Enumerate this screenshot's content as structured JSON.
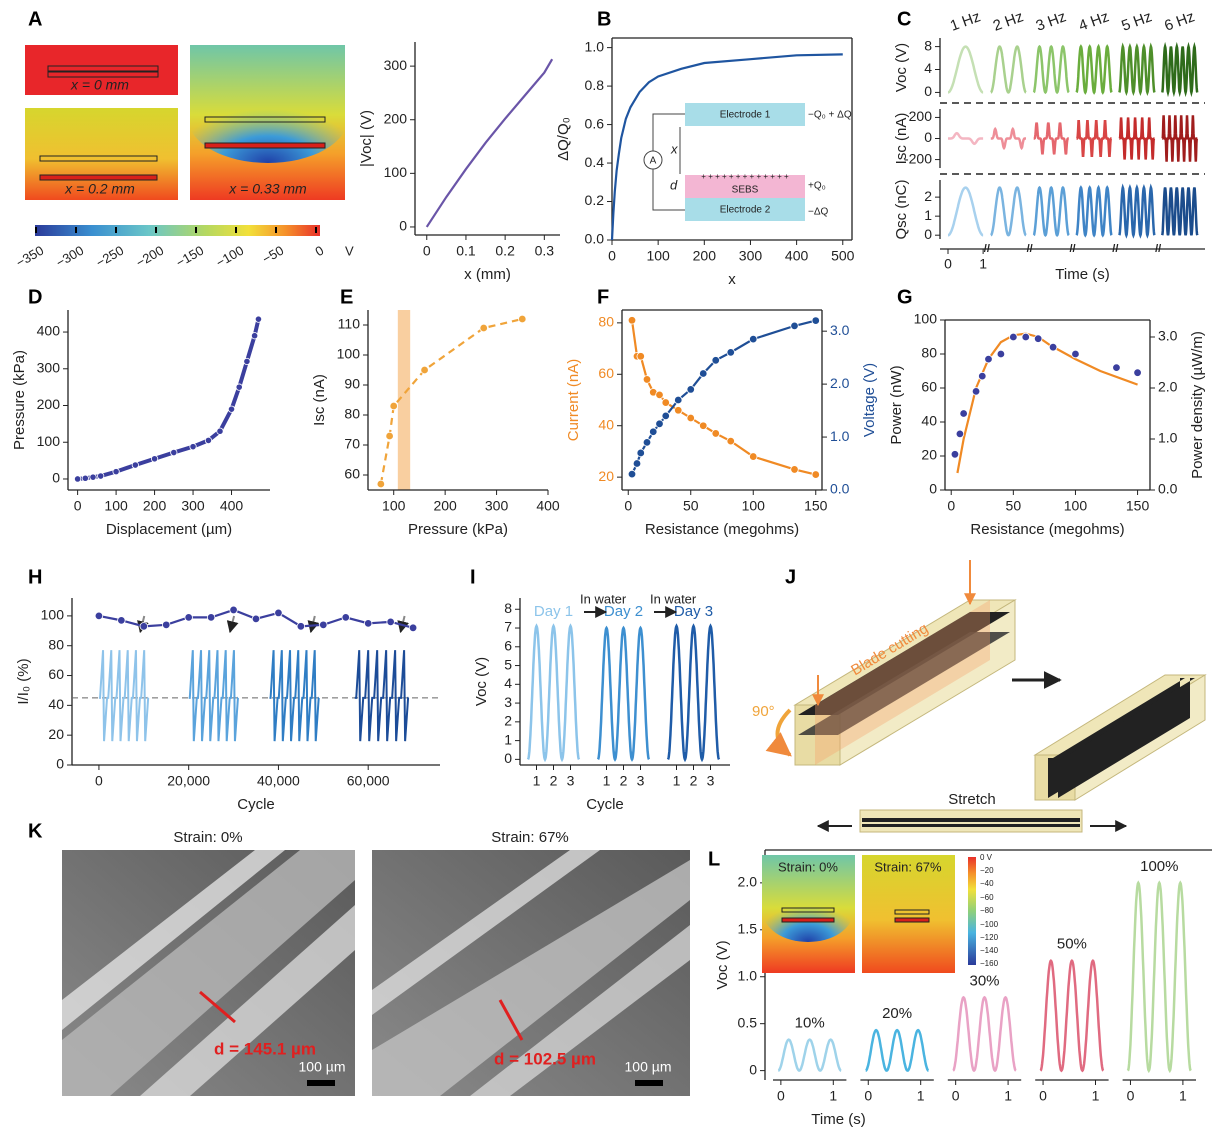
{
  "panel_letters": [
    "A",
    "B",
    "C",
    "D",
    "E",
    "F",
    "G",
    "H",
    "I",
    "J",
    "K",
    "L"
  ],
  "panel_a": {
    "labels": [
      "x = 0 mm",
      "x = 0.2 mm",
      "x = 0.33 mm"
    ],
    "colorbar": [
      "−350",
      "−300",
      "−250",
      "−200",
      "−150",
      "−100",
      "−50",
      "0"
    ],
    "unit": "V"
  },
  "panel_j": {
    "blade": "Blade cutting",
    "angle": "90°",
    "stretch": "Stretch"
  },
  "panel_k": {
    "images": [
      {
        "title": "Strain: 0%",
        "d": "d = 145.1 µm",
        "scale": "100 µm"
      },
      {
        "title": "Strain: 67%",
        "d": "d = 102.5 µm",
        "scale": "100 µm"
      }
    ]
  },
  "panel_l_inset": {
    "titles": [
      "Strain: 0%",
      "Strain: 67%"
    ],
    "colorbar": [
      "0 V",
      "−20",
      "−40",
      "−60",
      "−80",
      "−100",
      "−120",
      "−140",
      "−160"
    ]
  },
  "chart_data": [
    {
      "type": "line",
      "xlabel": "x (mm)",
      "ylabel": "|Voc| (V)",
      "xlim": [
        -0.03,
        0.34
      ],
      "ylim": [
        -15,
        345
      ],
      "xticks": [
        0,
        0.1,
        0.2,
        0.3
      ],
      "yticks": [
        0,
        100,
        200,
        300
      ],
      "series": [
        {
          "color": "#6a55a8",
          "style": "line",
          "x": [
            0,
            0.05,
            0.1,
            0.15,
            0.2,
            0.25,
            0.3,
            0.32
          ],
          "values": [
            0,
            56,
            108,
            157,
            202,
            245,
            288,
            313
          ]
        }
      ]
    },
    {
      "type": "line",
      "frame": true,
      "xlabel": "x",
      "ylabel": "ΔQ/Q₀",
      "xlim": [
        0,
        520
      ],
      "ylim": [
        0,
        1.05
      ],
      "xticks": [
        0,
        100,
        200,
        300,
        400,
        500
      ],
      "yticks": [
        {
          "value": 0,
          "label": "0.0"
        },
        0.2,
        0.4,
        0.6,
        0.8,
        {
          "value": 1,
          "label": "1.0"
        }
      ],
      "series": [
        {
          "color": "#1f55a0",
          "style": "line",
          "x": [
            0,
            3,
            6,
            10,
            15,
            20,
            30,
            40,
            60,
            80,
            100,
            150,
            200,
            300,
            400,
            500
          ],
          "values": [
            0,
            0.14,
            0.25,
            0.36,
            0.45,
            0.53,
            0.63,
            0.69,
            0.77,
            0.82,
            0.85,
            0.89,
            0.92,
            0.94,
            0.96,
            0.965
          ]
        }
      ],
      "inset": {
        "electrode1": "Electrode 1",
        "charge1": "−Q₀ + ΔQ",
        "gap": "x",
        "thickness": "d",
        "layer": "SEBS",
        "charge_layer": "+Q₀",
        "electrode2": "Electrode 2",
        "charge2": "−ΔQ",
        "meter": "A",
        "plus": "+ + + + + + + + + + + + +"
      }
    },
    {
      "type": "frequency_signals",
      "categories": [
        "1 Hz",
        "2 Hz",
        "3 Hz",
        "4 Hz",
        "5 Hz",
        "6 Hz"
      ],
      "xlabel": "Time (s)",
      "xticks": [
        0,
        1
      ],
      "rows": [
        {
          "name": "Voc (V)",
          "shape": "bump",
          "ylim": [
            -0.8,
            9.5
          ],
          "yticks": [
            0,
            4,
            8
          ],
          "peaks": [
            8,
            8,
            8,
            8,
            8,
            8
          ],
          "colors": [
            "#c5e0b4",
            "#a9d18e",
            "#8cc56a",
            "#6aad3d",
            "#4e8f2a",
            "#2e6b1a"
          ]
        },
        {
          "name": "Isc (nA)",
          "shape": "bipolar",
          "ylim": [
            -280,
            280
          ],
          "yticks": [
            -200,
            0,
            200
          ],
          "peaks": [
            50,
            90,
            150,
            170,
            200,
            220
          ],
          "colors": [
            "#f4b6c2",
            "#ee8e98",
            "#e5676e",
            "#d84545",
            "#c42c2c",
            "#a01d1d"
          ]
        },
        {
          "name": "Qsc (nC)",
          "shape": "bump",
          "ylim": [
            -0.2,
            2.9
          ],
          "yticks": [
            0,
            1,
            2
          ],
          "peaks": [
            2.5,
            2.5,
            2.5,
            2.5,
            2.5,
            2.5
          ],
          "colors": [
            "#a8d1ee",
            "#7ab4e0",
            "#5b9fd6",
            "#3f84c6",
            "#2a67ac",
            "#1b4c8c"
          ]
        }
      ]
    },
    {
      "type": "line",
      "xlabel": "Displacement (µm)",
      "ylabel": "Pressure (kPa)",
      "xlim": [
        -25,
        500
      ],
      "ylim": [
        -30,
        460
      ],
      "xticks": [
        0,
        100,
        200,
        300,
        400
      ],
      "yticks": [
        0,
        100,
        200,
        300,
        400
      ],
      "series": [
        {
          "color": "#3b3f9e",
          "style": "line-markers",
          "x": [
            0,
            20,
            40,
            60,
            100,
            150,
            200,
            250,
            300,
            340,
            370,
            400,
            420,
            440,
            460,
            470
          ],
          "values": [
            0,
            2,
            5,
            8,
            20,
            38,
            55,
            72,
            88,
            105,
            130,
            190,
            250,
            320,
            390,
            435
          ]
        }
      ]
    },
    {
      "type": "line",
      "xlabel": "Pressure (kPa)",
      "ylabel": "Isc (nA)",
      "xlim": [
        50,
        400
      ],
      "ylim": [
        55,
        115
      ],
      "xticks": [
        100,
        200,
        300,
        400
      ],
      "yticks": [
        60,
        70,
        80,
        90,
        100,
        110
      ],
      "highlight": [
        108,
        132
      ],
      "highlight_color": "#f9cfa0",
      "series": [
        {
          "color": "#f0a43a",
          "style": "dashed-markers",
          "x": [
            75,
            92,
            100,
            160,
            275,
            350
          ],
          "values": [
            57,
            73,
            83,
            95,
            109,
            112
          ]
        }
      ]
    },
    {
      "type": "line",
      "frame": true,
      "color_axes": true,
      "xlabel": "Resistance (megohms)",
      "ylabel": "Current (nA)",
      "y2label": "Voltage (V)",
      "xlim": [
        -5,
        155
      ],
      "ylim": [
        15,
        85
      ],
      "y2lim": [
        0,
        3.4
      ],
      "xticks": [
        0,
        50,
        100,
        150
      ],
      "yticks": [
        20,
        40,
        60,
        80
      ],
      "y2ticks": [
        {
          "value": 0,
          "label": "0.0"
        },
        {
          "value": 1,
          "label": "1.0"
        },
        {
          "value": 2,
          "label": "2.0"
        },
        {
          "value": 3,
          "label": "3.0"
        }
      ],
      "series": [
        {
          "color": "#f08a24",
          "style": "line-markers",
          "x": [
            3,
            7,
            10,
            15,
            20,
            25,
            30,
            40,
            50,
            60,
            70,
            82,
            100,
            133,
            150
          ],
          "values": [
            81,
            67,
            67,
            58,
            53,
            52,
            49,
            46,
            43,
            40,
            37,
            34,
            28,
            23,
            21
          ]
        },
        {
          "color": "#1f4e96",
          "style": "line-markers",
          "axis": "y2",
          "x": [
            3,
            7,
            10,
            15,
            20,
            25,
            30,
            40,
            50,
            60,
            70,
            82,
            100,
            133,
            150
          ],
          "values": [
            0.3,
            0.5,
            0.7,
            0.9,
            1.1,
            1.25,
            1.4,
            1.7,
            1.9,
            2.2,
            2.45,
            2.6,
            2.85,
            3.1,
            3.2
          ]
        }
      ]
    },
    {
      "type": "line",
      "frame": true,
      "xlabel": "Resistance (megohms)",
      "ylabel": "Power (nW)",
      "y2label": "Power density (µW/m)",
      "xlim": [
        -5,
        160
      ],
      "ylim": [
        0,
        100
      ],
      "y2lim": [
        0,
        3.333
      ],
      "xticks": [
        0,
        50,
        100,
        150
      ],
      "yticks": [
        0,
        20,
        40,
        60,
        80,
        100
      ],
      "y2ticks": [
        {
          "value": 0,
          "label": "0.0"
        },
        {
          "value": 1,
          "label": "1.0"
        },
        {
          "value": 2,
          "label": "2.0"
        },
        {
          "value": 3,
          "label": "3.0"
        }
      ],
      "series": [
        {
          "color": "#f08a24",
          "style": "line",
          "x": [
            5,
            10,
            20,
            30,
            40,
            50,
            60,
            70,
            80,
            100,
            120,
            150
          ],
          "values": [
            10,
            30,
            60,
            77,
            87,
            91,
            92,
            90,
            85,
            77,
            70,
            62
          ]
        },
        {
          "color": "#3b3f9e",
          "style": "markers",
          "x": [
            3,
            7,
            10,
            20,
            25,
            30,
            40,
            50,
            60,
            70,
            82,
            100,
            133,
            150
          ],
          "values": [
            21,
            33,
            45,
            58,
            67,
            77,
            80,
            90,
            90,
            89,
            84,
            80,
            72,
            69
          ]
        }
      ]
    },
    {
      "type": "line",
      "xlabel": "Cycle",
      "ylabel": "I/I₀ (%)",
      "xlim": [
        -6000,
        76000
      ],
      "ylim": [
        0,
        112
      ],
      "xticks": [
        0,
        {
          "value": 20000,
          "label": "20,000"
        },
        {
          "value": 40000,
          "label": "40,000"
        },
        {
          "value": 60000,
          "label": "60,000"
        }
      ],
      "yticks": [
        0,
        20,
        40,
        60,
        80,
        100
      ],
      "baseline": 45,
      "spike_high": 77,
      "spike_low": 16,
      "blocks": [
        {
          "x": [
            0,
            11000
          ],
          "color": "#8ec3ea"
        },
        {
          "x": [
            20000,
            31000
          ],
          "color": "#5aa3dc"
        },
        {
          "x": [
            38000,
            49000
          ],
          "color": "#2f7dc4"
        },
        {
          "x": [
            57000,
            69000
          ],
          "color": "#1c4c98"
        }
      ],
      "series": [
        {
          "color": "#3b3f9e",
          "style": "line-markers",
          "x": [
            0,
            5000,
            10000,
            15000,
            20000,
            25000,
            30000,
            35000,
            40000,
            45000,
            50000,
            55000,
            60000,
            65000,
            70000
          ],
          "values": [
            100,
            97,
            93,
            94,
            99,
            99,
            104,
            98,
            102,
            93,
            94,
            99,
            95,
            96,
            92
          ]
        }
      ]
    },
    {
      "type": "day_signals",
      "xlabel": "Cycle",
      "ylabel": "Voc (V)",
      "ylim": [
        -0.3,
        8.6
      ],
      "yticks": [
        0,
        1,
        2,
        3,
        4,
        5,
        6,
        7,
        8
      ],
      "cycle_ticks": [
        1,
        2,
        3
      ],
      "annotations": [
        "In water",
        "In water"
      ],
      "days": [
        {
          "name": "Day 1",
          "color": "#8cc4ea",
          "peak": 7.1
        },
        {
          "name": "Day 2",
          "color": "#3d8fd0",
          "peak": 7.0
        },
        {
          "name": "Day 3",
          "color": "#1f5ca8",
          "peak": 7.1
        }
      ]
    },
    {
      "type": "strain_signals",
      "xlabel": "Time (s)",
      "ylabel": "Voc (V)",
      "xlim": [
        -0.15,
        1.25
      ],
      "ylim": [
        -0.1,
        2.35
      ],
      "xticks": [
        0,
        1
      ],
      "yticks": [
        0,
        0.5,
        {
          "value": 1,
          "label": "1.0"
        },
        1.5,
        {
          "value": 2,
          "label": "2.0"
        }
      ],
      "groups": [
        {
          "label": "10%",
          "peak": 0.33,
          "color": "#9fd3ea"
        },
        {
          "label": "20%",
          "peak": 0.43,
          "color": "#4ab4e0"
        },
        {
          "label": "30%",
          "peak": 0.78,
          "color": "#e9a2c5"
        },
        {
          "label": "50%",
          "peak": 1.17,
          "color": "#e06a80"
        },
        {
          "label": "100%",
          "peak": 2.0,
          "color": "#b7dba0"
        }
      ]
    }
  ]
}
